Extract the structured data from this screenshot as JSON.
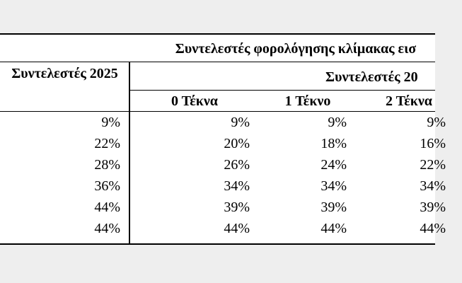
{
  "table": {
    "title": "Συντελεστές φορολόγησης κλίμακας εισ",
    "first_header": "Συντελεστές 2025",
    "group_header": "Συντελεστές 20",
    "sub_headers": [
      "0 Τέκνα",
      "1 Τέκνο",
      "2 Τέκνα"
    ],
    "rows": [
      [
        "9%",
        "9%",
        "9%",
        "9%"
      ],
      [
        "22%",
        "20%",
        "18%",
        "16%"
      ],
      [
        "28%",
        "26%",
        "24%",
        "22%"
      ],
      [
        "36%",
        "34%",
        "34%",
        "34%"
      ],
      [
        "44%",
        "39%",
        "39%",
        "39%"
      ],
      [
        "44%",
        "44%",
        "44%",
        "44%"
      ]
    ]
  }
}
